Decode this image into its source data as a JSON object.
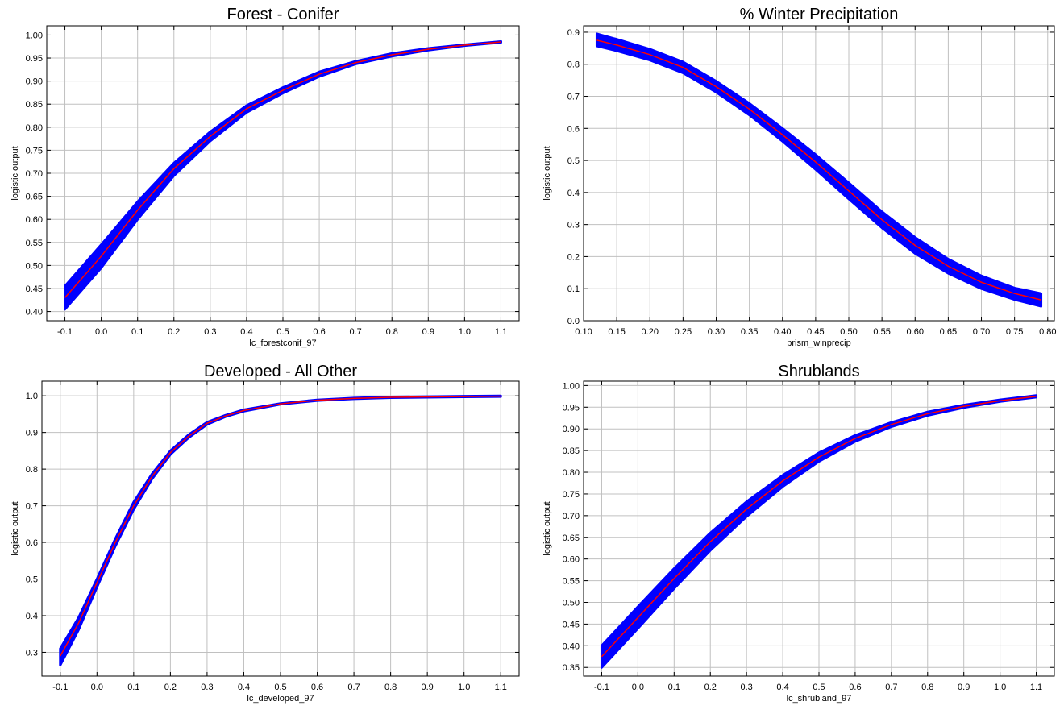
{
  "colors": {
    "band": "#0000ff",
    "line": "#ff0000",
    "grid": "#c0c0c0",
    "frame": "#000000"
  },
  "chart_data": [
    {
      "type": "line",
      "title": "Forest - Conifer",
      "xlabel": "lc_forestconif_97",
      "ylabel": "logistic output",
      "xlim": [
        -0.15,
        1.15
      ],
      "ylim": [
        0.38,
        1.02
      ],
      "xticks": [
        -0.1,
        0.0,
        0.1,
        0.2,
        0.3,
        0.4,
        0.5,
        0.6,
        0.7,
        0.8,
        0.9,
        1.0,
        1.1
      ],
      "xtick_labels": [
        "-0.1",
        "0.0",
        "0.1",
        "0.2",
        "0.3",
        "0.4",
        "0.5",
        "0.6",
        "0.7",
        "0.8",
        "0.9",
        "1.0",
        "1.1"
      ],
      "yticks": [
        0.4,
        0.45,
        0.5,
        0.55,
        0.6,
        0.65,
        0.7,
        0.75,
        0.8,
        0.85,
        0.9,
        0.95,
        1.0
      ],
      "ytick_labels": [
        "0.40",
        "0.45",
        "0.50",
        "0.55",
        "0.60",
        "0.65",
        "0.70",
        "0.75",
        "0.80",
        "0.85",
        "0.90",
        "0.95",
        "1.00"
      ],
      "grid": true,
      "series": [
        {
          "role": "mean",
          "x": [
            -0.1,
            0.0,
            0.1,
            0.2,
            0.3,
            0.4,
            0.5,
            0.6,
            0.7,
            0.8,
            0.9,
            1.0,
            1.1
          ],
          "y": [
            0.43,
            0.52,
            0.62,
            0.71,
            0.78,
            0.84,
            0.88,
            0.915,
            0.94,
            0.957,
            0.969,
            0.978,
            0.985
          ]
        },
        {
          "role": "band_upper",
          "x": [
            -0.1,
            0.0,
            0.1,
            0.2,
            0.3,
            0.4,
            0.5,
            0.6,
            0.7,
            0.8,
            0.9,
            1.0,
            1.1
          ],
          "y": [
            0.455,
            0.545,
            0.638,
            0.722,
            0.79,
            0.847,
            0.886,
            0.92,
            0.943,
            0.96,
            0.971,
            0.979,
            0.986
          ]
        },
        {
          "role": "band_lower",
          "x": [
            -0.1,
            0.0,
            0.1,
            0.2,
            0.3,
            0.4,
            0.5,
            0.6,
            0.7,
            0.8,
            0.9,
            1.0,
            1.1
          ],
          "y": [
            0.405,
            0.495,
            0.6,
            0.695,
            0.77,
            0.832,
            0.874,
            0.91,
            0.937,
            0.954,
            0.967,
            0.977,
            0.984
          ]
        }
      ]
    },
    {
      "type": "line",
      "title": "% Winter Precipitation",
      "xlabel": "prism_winprecip",
      "ylabel": "logistic output",
      "xlim": [
        0.1,
        0.81
      ],
      "ylim": [
        0.0,
        0.92
      ],
      "xticks": [
        0.1,
        0.15,
        0.2,
        0.25,
        0.3,
        0.35,
        0.4,
        0.45,
        0.5,
        0.55,
        0.6,
        0.65,
        0.7,
        0.75,
        0.8
      ],
      "xtick_labels": [
        "0.10",
        "0.15",
        "0.20",
        "0.25",
        "0.30",
        "0.35",
        "0.40",
        "0.45",
        "0.50",
        "0.55",
        "0.60",
        "0.65",
        "0.70",
        "0.75",
        "0.80"
      ],
      "yticks": [
        0.0,
        0.1,
        0.2,
        0.3,
        0.4,
        0.5,
        0.6,
        0.7,
        0.8,
        0.9
      ],
      "ytick_labels": [
        "0.0",
        "0.1",
        "0.2",
        "0.3",
        "0.4",
        "0.5",
        "0.6",
        "0.7",
        "0.8",
        "0.9"
      ],
      "grid": true,
      "series": [
        {
          "role": "mean",
          "x": [
            0.12,
            0.15,
            0.2,
            0.25,
            0.3,
            0.35,
            0.4,
            0.45,
            0.5,
            0.55,
            0.6,
            0.65,
            0.7,
            0.75,
            0.79
          ],
          "y": [
            0.875,
            0.86,
            0.83,
            0.79,
            0.73,
            0.66,
            0.58,
            0.495,
            0.405,
            0.315,
            0.235,
            0.17,
            0.12,
            0.085,
            0.065
          ]
        },
        {
          "role": "band_upper",
          "x": [
            0.12,
            0.15,
            0.2,
            0.25,
            0.3,
            0.35,
            0.4,
            0.45,
            0.5,
            0.55,
            0.6,
            0.65,
            0.7,
            0.75,
            0.79
          ],
          "y": [
            0.895,
            0.878,
            0.847,
            0.807,
            0.747,
            0.678,
            0.6,
            0.518,
            0.43,
            0.34,
            0.26,
            0.192,
            0.14,
            0.102,
            0.085
          ]
        },
        {
          "role": "band_lower",
          "x": [
            0.12,
            0.15,
            0.2,
            0.25,
            0.3,
            0.35,
            0.4,
            0.45,
            0.5,
            0.55,
            0.6,
            0.65,
            0.7,
            0.75,
            0.79
          ],
          "y": [
            0.857,
            0.842,
            0.813,
            0.773,
            0.713,
            0.642,
            0.56,
            0.472,
            0.38,
            0.29,
            0.21,
            0.148,
            0.1,
            0.066,
            0.045
          ]
        }
      ]
    },
    {
      "type": "line",
      "title": "Developed - All Other",
      "xlabel": "lc_developed_97",
      "ylabel": "logistic output",
      "xlim": [
        -0.15,
        1.15
      ],
      "ylim": [
        0.235,
        1.04
      ],
      "xticks": [
        -0.1,
        0.0,
        0.1,
        0.2,
        0.3,
        0.4,
        0.5,
        0.6,
        0.7,
        0.8,
        0.9,
        1.0,
        1.1
      ],
      "xtick_labels": [
        "-0.1",
        "0.0",
        "0.1",
        "0.2",
        "0.3",
        "0.4",
        "0.5",
        "0.6",
        "0.7",
        "0.8",
        "0.9",
        "1.0",
        "1.1"
      ],
      "yticks": [
        0.3,
        0.4,
        0.5,
        0.6,
        0.7,
        0.8,
        0.9,
        1.0
      ],
      "ytick_labels": [
        "0.3",
        "0.4",
        "0.5",
        "0.6",
        "0.7",
        "0.8",
        "0.9",
        "1.0"
      ],
      "grid": true,
      "series": [
        {
          "role": "mean",
          "x": [
            -0.1,
            -0.05,
            0.0,
            0.05,
            0.1,
            0.15,
            0.2,
            0.25,
            0.3,
            0.35,
            0.4,
            0.5,
            0.6,
            0.7,
            0.8,
            0.9,
            1.0,
            1.1
          ],
          "y": [
            0.29,
            0.38,
            0.49,
            0.6,
            0.7,
            0.78,
            0.845,
            0.89,
            0.925,
            0.945,
            0.96,
            0.978,
            0.988,
            0.993,
            0.996,
            0.997,
            0.998,
            0.999
          ]
        },
        {
          "role": "band_upper",
          "x": [
            -0.1,
            -0.05,
            0.0,
            0.05,
            0.1,
            0.15,
            0.2,
            0.25,
            0.3,
            0.35,
            0.4,
            0.5,
            0.6,
            0.7,
            0.8,
            0.9,
            1.0,
            1.1
          ],
          "y": [
            0.31,
            0.395,
            0.5,
            0.61,
            0.71,
            0.787,
            0.85,
            0.894,
            0.928,
            0.947,
            0.962,
            0.979,
            0.989,
            0.994,
            0.997,
            0.998,
            0.999,
            1.0
          ]
        },
        {
          "role": "band_lower",
          "x": [
            -0.1,
            -0.05,
            0.0,
            0.05,
            0.1,
            0.15,
            0.2,
            0.25,
            0.3,
            0.35,
            0.4,
            0.5,
            0.6,
            0.7,
            0.8,
            0.9,
            1.0,
            1.1
          ],
          "y": [
            0.265,
            0.362,
            0.478,
            0.59,
            0.69,
            0.773,
            0.84,
            0.886,
            0.922,
            0.943,
            0.958,
            0.977,
            0.987,
            0.992,
            0.995,
            0.996,
            0.997,
            0.998
          ]
        }
      ]
    },
    {
      "type": "line",
      "title": "Shrublands",
      "xlabel": "lc_shrubland_97",
      "ylabel": "logistic output",
      "xlim": [
        -0.15,
        1.15
      ],
      "ylim": [
        0.33,
        1.01
      ],
      "xticks": [
        -0.1,
        0.0,
        0.1,
        0.2,
        0.3,
        0.4,
        0.5,
        0.6,
        0.7,
        0.8,
        0.9,
        1.0,
        1.1
      ],
      "xtick_labels": [
        "-0.1",
        "0.0",
        "0.1",
        "0.2",
        "0.3",
        "0.4",
        "0.5",
        "0.6",
        "0.7",
        "0.8",
        "0.9",
        "1.0",
        "1.1"
      ],
      "yticks": [
        0.35,
        0.4,
        0.45,
        0.5,
        0.55,
        0.6,
        0.65,
        0.7,
        0.75,
        0.8,
        0.85,
        0.9,
        0.95,
        1.0
      ],
      "ytick_labels": [
        "0.35",
        "0.40",
        "0.45",
        "0.50",
        "0.55",
        "0.60",
        "0.65",
        "0.70",
        "0.75",
        "0.80",
        "0.85",
        "0.90",
        "0.95",
        "1.00"
      ],
      "grid": true,
      "series": [
        {
          "role": "mean",
          "x": [
            -0.1,
            0.0,
            0.1,
            0.2,
            0.3,
            0.4,
            0.5,
            0.6,
            0.7,
            0.8,
            0.9,
            1.0,
            1.1
          ],
          "y": [
            0.375,
            0.465,
            0.555,
            0.64,
            0.715,
            0.78,
            0.835,
            0.878,
            0.91,
            0.935,
            0.952,
            0.965,
            0.975
          ]
        },
        {
          "role": "band_upper",
          "x": [
            -0.1,
            0.0,
            0.1,
            0.2,
            0.3,
            0.4,
            0.5,
            0.6,
            0.7,
            0.8,
            0.9,
            1.0,
            1.1
          ],
          "y": [
            0.4,
            0.49,
            0.578,
            0.66,
            0.732,
            0.793,
            0.845,
            0.885,
            0.915,
            0.939,
            0.955,
            0.967,
            0.977
          ]
        },
        {
          "role": "band_lower",
          "x": [
            -0.1,
            0.0,
            0.1,
            0.2,
            0.3,
            0.4,
            0.5,
            0.6,
            0.7,
            0.8,
            0.9,
            1.0,
            1.1
          ],
          "y": [
            0.35,
            0.44,
            0.532,
            0.62,
            0.698,
            0.767,
            0.825,
            0.871,
            0.905,
            0.931,
            0.949,
            0.963,
            0.973
          ]
        }
      ]
    }
  ]
}
